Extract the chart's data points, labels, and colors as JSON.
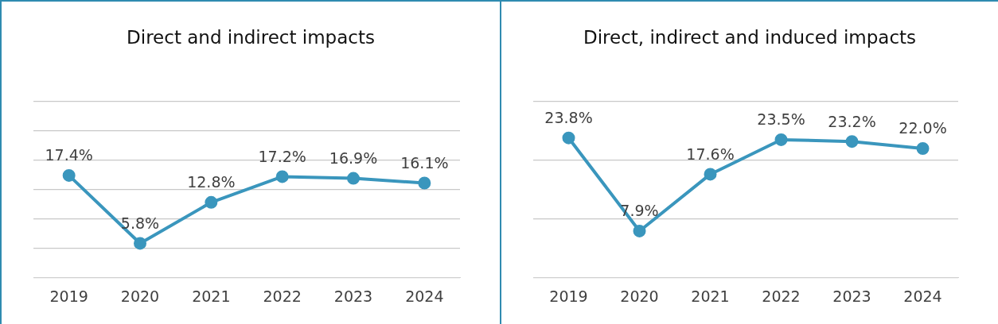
{
  "chart_data": [
    {
      "type": "line",
      "title": "Direct and indirect impacts",
      "categories": [
        "2019",
        "2020",
        "2021",
        "2022",
        "2023",
        "2024"
      ],
      "series": [
        {
          "color": "#3a96bd",
          "values": [
            17.4,
            5.8,
            12.8,
            17.2,
            16.9,
            16.1
          ],
          "value_labels": [
            "17.4%",
            "5.8%",
            "12.8%",
            "17.2%",
            "16.9%",
            "16.1%"
          ]
        }
      ],
      "ylim": [
        0,
        30
      ],
      "yticks": [
        {
          "value": 0,
          "label": null
        },
        {
          "value": 5,
          "label": null
        },
        {
          "value": 10,
          "label": null
        },
        {
          "value": 15,
          "label": null
        },
        {
          "value": 20,
          "label": null
        },
        {
          "value": 25,
          "label": null
        },
        {
          "value": 30,
          "label": null
        }
      ],
      "tick_labels": "x",
      "grid": "y",
      "legend": false,
      "marker": "circle",
      "line_style": "solid"
    },
    {
      "type": "line",
      "title": "Direct, indirect and induced impacts",
      "categories": [
        "2019",
        "2020",
        "2021",
        "2022",
        "2023",
        "2024"
      ],
      "series": [
        {
          "color": "#3a96bd",
          "values": [
            23.8,
            7.9,
            17.6,
            23.5,
            23.2,
            22.0
          ],
          "value_labels": [
            "23.8%",
            "7.9%",
            "17.6%",
            "23.5%",
            "23.2%",
            "22.0%"
          ]
        }
      ],
      "ylim": [
        0,
        30
      ],
      "yticks": [
        {
          "value": 0,
          "label": null
        },
        {
          "value": 10,
          "label": null
        },
        {
          "value": 20,
          "label": null
        },
        {
          "value": 30,
          "label": null
        }
      ],
      "tick_labels": "x",
      "grid": "y",
      "legend": false,
      "marker": "circle",
      "line_style": "solid"
    }
  ]
}
